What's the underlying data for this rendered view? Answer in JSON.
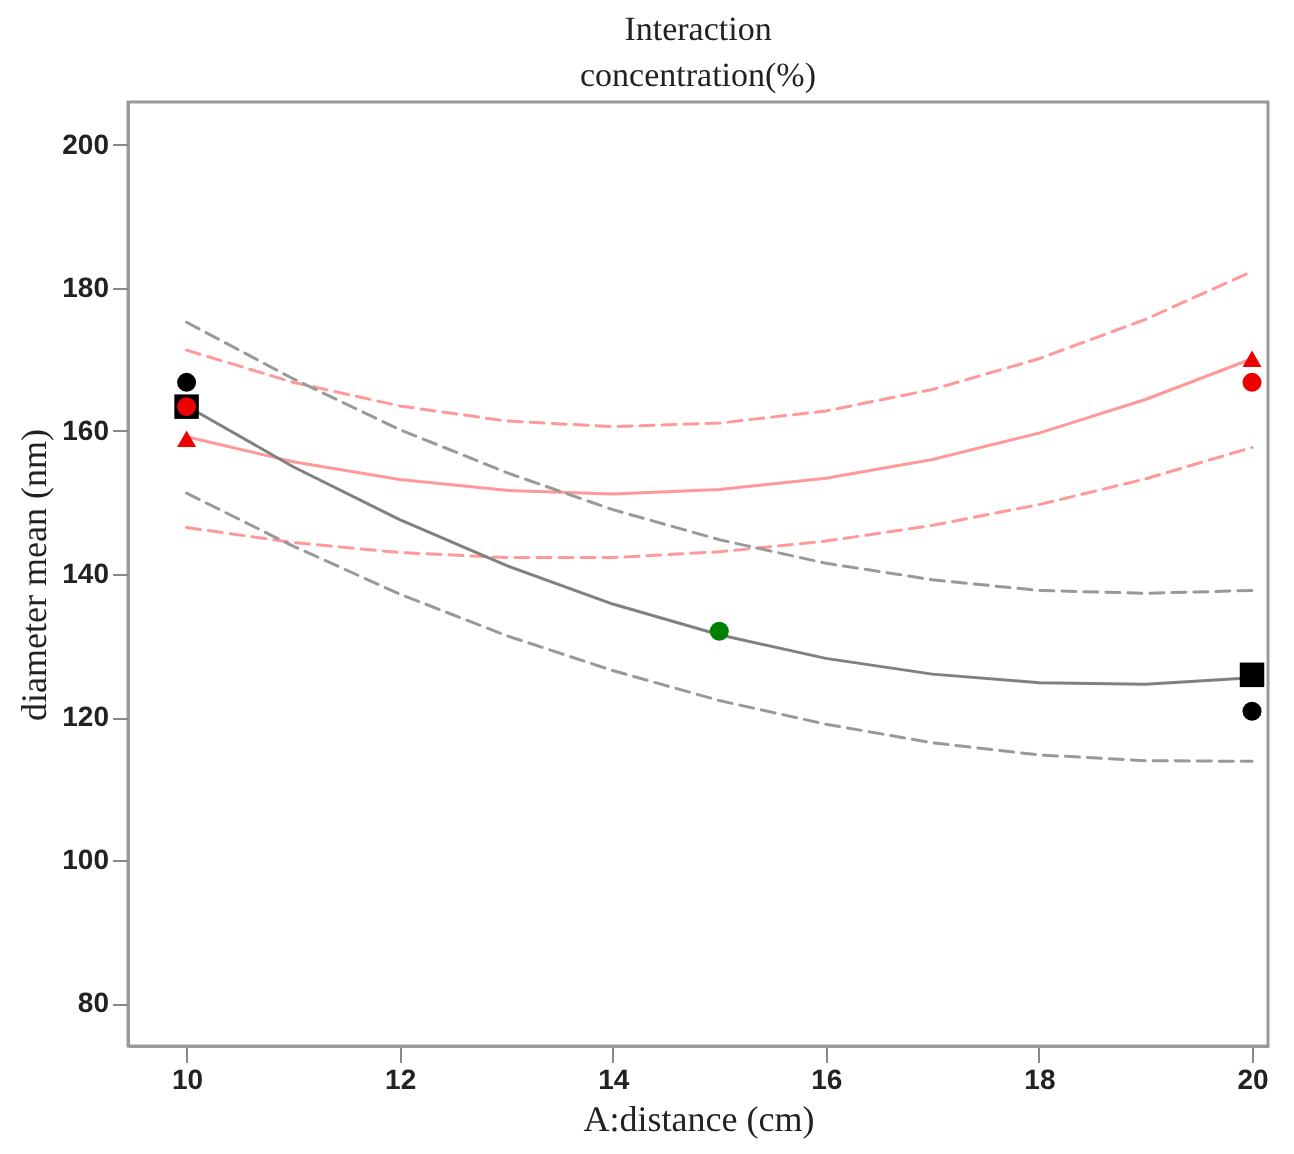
{
  "chart_data": {
    "type": "line",
    "title": "Interaction",
    "subtitle": "concentration(%)",
    "xlabel": "A:distance (cm)",
    "ylabel": "diameter mean (nm)",
    "xlim": [
      9.45,
      20.15
    ],
    "ylim": [
      74,
      206
    ],
    "xticks": [
      10,
      12,
      14,
      16,
      18,
      20
    ],
    "yticks": [
      80,
      100,
      120,
      140,
      160,
      180,
      200
    ],
    "grid": false,
    "series": [
      {
        "color": "#ff9999",
        "line_style": "dashed",
        "marker": "none",
        "x": [
          10,
          11,
          12,
          13,
          14,
          15,
          16,
          17,
          18,
          19,
          20
        ],
        "values": [
          171.3,
          166.8,
          163.5,
          161.4,
          160.6,
          161.1,
          162.8,
          165.8,
          170.1,
          175.6,
          182.3
        ]
      },
      {
        "color": "#ff9999",
        "line_style": "solid",
        "marker": "none",
        "x": [
          10,
          11,
          12,
          13,
          14,
          15,
          16,
          17,
          18,
          19,
          20
        ],
        "values": [
          159.2,
          155.7,
          153.2,
          151.7,
          151.2,
          151.8,
          153.4,
          156.0,
          159.7,
          164.4,
          170.1
        ]
      },
      {
        "color": "#ff9999",
        "line_style": "dashed",
        "marker": "none",
        "x": [
          10,
          11,
          12,
          13,
          14,
          15,
          16,
          17,
          18,
          19,
          20
        ],
        "values": [
          146.5,
          144.4,
          143.0,
          142.3,
          142.3,
          143.1,
          144.6,
          146.8,
          149.7,
          153.3,
          157.7
        ]
      },
      {
        "color": "#999999",
        "line_style": "dashed",
        "marker": "none",
        "x": [
          10,
          11,
          12,
          13,
          14,
          15,
          16,
          17,
          18,
          19,
          20
        ],
        "values": [
          175.2,
          167.3,
          160.2,
          154.2,
          149.0,
          144.8,
          141.5,
          139.2,
          137.7,
          137.3,
          137.7
        ]
      },
      {
        "color": "#808080",
        "line_style": "solid",
        "marker": "none",
        "x": [
          10,
          11,
          12,
          13,
          14,
          15,
          16,
          17,
          18,
          19,
          20
        ],
        "values": [
          163.5,
          155.0,
          147.6,
          141.2,
          135.8,
          131.5,
          128.2,
          126.0,
          124.8,
          124.6,
          125.5
        ]
      },
      {
        "color": "#999999",
        "line_style": "dashed",
        "marker": "none",
        "x": [
          10,
          11,
          12,
          13,
          14,
          15,
          16,
          17,
          18,
          19,
          20
        ],
        "values": [
          151.3,
          143.9,
          137.2,
          131.4,
          126.5,
          122.3,
          119.0,
          116.4,
          114.7,
          113.9,
          113.8
        ]
      },
      {
        "type": "scatter",
        "color": "#000000",
        "marker": "circle",
        "x": [
          10,
          20
        ],
        "values": [
          166.8,
          120.8
        ]
      },
      {
        "type": "scatter",
        "color": "#000000",
        "marker": "square",
        "x": [
          10,
          20
        ],
        "values": [
          163.4,
          125.9
        ]
      },
      {
        "type": "scatter",
        "color": "#ee0000",
        "marker": "circle",
        "x": [
          10,
          20
        ],
        "values": [
          163.4,
          166.8
        ]
      },
      {
        "type": "scatter",
        "color": "#ee0000",
        "marker": "triangle",
        "x": [
          10,
          20
        ],
        "values": [
          158.9,
          170.1
        ]
      },
      {
        "type": "scatter",
        "color": "#008000",
        "marker": "circle",
        "x": [
          15
        ],
        "values": [
          132
        ]
      }
    ]
  }
}
